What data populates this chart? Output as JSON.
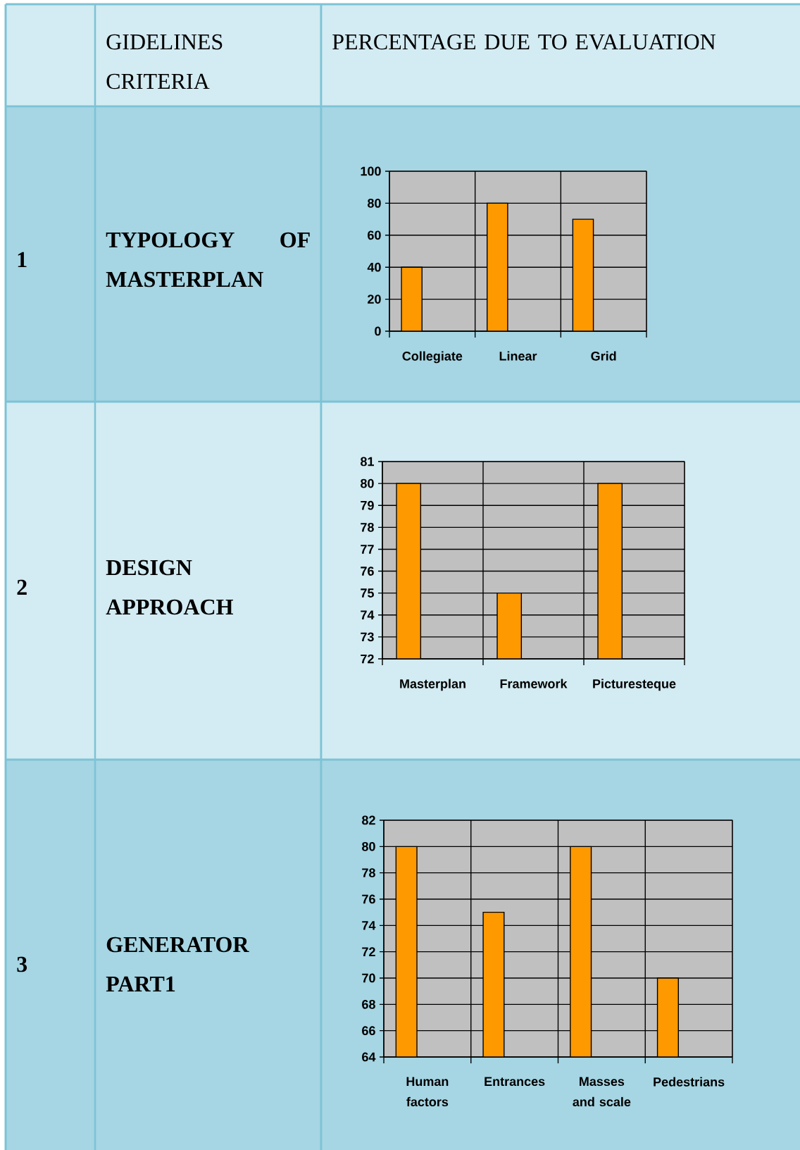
{
  "chart_data": [
    {
      "type": "other",
      "annotations": [
        "GIDELINES CRITERIA",
        "PERCENTAGE DUE TO EVALUATION"
      ]
    },
    {
      "type": "bar",
      "title": "TYPOLOGY OF MASTERPLAN",
      "annotations": [
        "1"
      ],
      "categories": [
        "Collegiate",
        "Linear",
        "Grid"
      ],
      "values": [
        40,
        80,
        70
      ],
      "color": "#ff9900",
      "ylim": [
        0,
        100
      ],
      "yticks": [
        0,
        20,
        40,
        60,
        80,
        100
      ],
      "grid": true
    },
    {
      "type": "bar",
      "title": "DESIGN APPROACH",
      "annotations": [
        "2"
      ],
      "categories": [
        "Masterplan",
        "Framework",
        "Picturesteque"
      ],
      "values": [
        80,
        75,
        80
      ],
      "color": "#ff9900",
      "ylim": [
        72,
        81
      ],
      "yticks": [
        72,
        73,
        74,
        75,
        76,
        77,
        78,
        79,
        80,
        81
      ],
      "grid": true
    },
    {
      "type": "bar",
      "title": "GENERATOR PART1",
      "annotations": [
        "3"
      ],
      "categories": [
        "Human factors",
        "Entrances",
        "Masses and scale",
        "Pedestrians"
      ],
      "values": [
        80,
        75,
        80,
        70
      ],
      "color": "#ff9900",
      "ylim": [
        64,
        82
      ],
      "yticks": [
        64,
        66,
        68,
        70,
        72,
        74,
        76,
        78,
        80,
        82
      ],
      "grid": true
    }
  ]
}
